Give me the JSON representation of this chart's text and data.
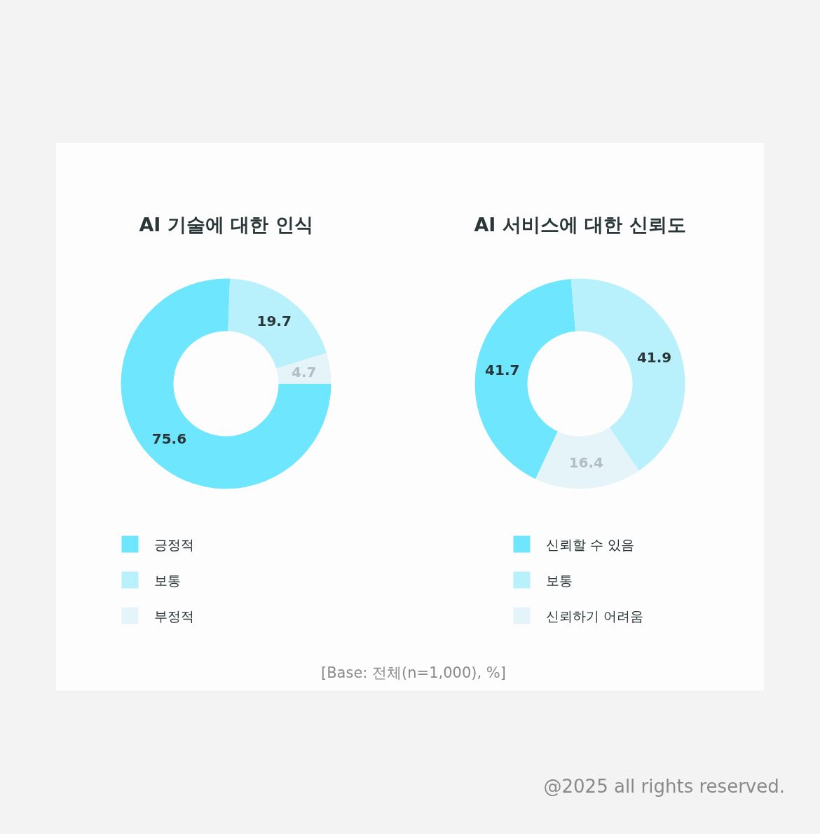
{
  "chart_data": [
    {
      "type": "donut",
      "title": "AI 기술에 대한 인식",
      "categories": [
        "긍정적",
        "보통",
        "부정적"
      ],
      "values": [
        75.6,
        19.7,
        4.7
      ],
      "colors": [
        "#6ee6fd",
        "#b8f0fc",
        "#e4f4f8"
      ],
      "data_labels": true,
      "legend": "bottom",
      "annotations": [
        "[Base: 전체(n=1,000), %]"
      ]
    },
    {
      "type": "donut",
      "title": "AI 서비스에 대한 신뢰도",
      "categories": [
        "신뢰할 수 있음",
        "보통",
        "신뢰하기 어려움"
      ],
      "values": [
        41.7,
        41.9,
        16.4
      ],
      "colors": [
        "#6ee6fd",
        "#b8f0fc",
        "#e4f4f8"
      ],
      "data_labels": true,
      "legend": "bottom",
      "annotations": [
        "@2025 all rights reserved."
      ]
    }
  ]
}
